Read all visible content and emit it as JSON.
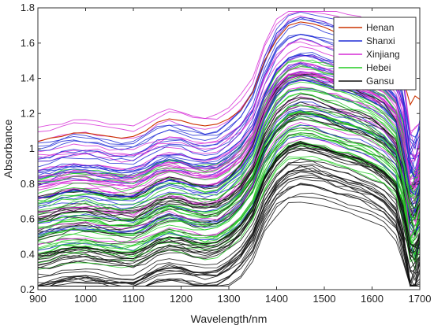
{
  "chart_data": {
    "type": "line",
    "title": "",
    "xlabel": "Wavelength/nm",
    "ylabel": "Absorbance",
    "xlim": [
      900,
      1700
    ],
    "ylim": [
      0.2,
      1.8
    ],
    "xticks": [
      "900",
      "1000",
      "1100",
      "1200",
      "1300",
      "1400",
      "1500",
      "1600",
      "1700"
    ],
    "yticks": [
      "0.2",
      "0.4",
      "0.6",
      "0.8",
      "1",
      "1.2",
      "1.4",
      "1.6",
      "1.8"
    ],
    "grid": false,
    "legend_position": "top-right",
    "x": [
      900,
      925,
      950,
      975,
      1000,
      1025,
      1050,
      1075,
      1100,
      1125,
      1150,
      1175,
      1200,
      1225,
      1250,
      1275,
      1300,
      1325,
      1350,
      1375,
      1400,
      1425,
      1450,
      1475,
      1500,
      1525,
      1550,
      1575,
      1600,
      1625,
      1650,
      1665,
      1680,
      1690,
      1700
    ],
    "series": [
      {
        "name": "Henan",
        "color": "#cc3300",
        "values": [
          1.04,
          1.06,
          1.07,
          1.09,
          1.09,
          1.08,
          1.07,
          1.06,
          1.07,
          1.1,
          1.15,
          1.17,
          1.16,
          1.14,
          1.13,
          1.14,
          1.17,
          1.22,
          1.32,
          1.5,
          1.62,
          1.7,
          1.72,
          1.71,
          1.69,
          1.66,
          1.64,
          1.62,
          1.58,
          1.55,
          1.5,
          1.4,
          1.25,
          1.3,
          1.28
        ]
      },
      {
        "name": "Shanxi",
        "color": "#1f2bd6",
        "values": [
          0.72,
          0.73,
          0.75,
          0.76,
          0.76,
          0.75,
          0.74,
          0.73,
          0.73,
          0.76,
          0.8,
          0.82,
          0.81,
          0.79,
          0.78,
          0.79,
          0.83,
          0.89,
          0.99,
          1.17,
          1.3,
          1.37,
          1.39,
          1.38,
          1.36,
          1.34,
          1.32,
          1.3,
          1.27,
          1.23,
          1.15,
          1.0,
          0.76,
          0.74,
          0.82
        ]
      },
      {
        "name": "Xinjiang",
        "color": "#d62bd6",
        "values": [
          0.78,
          0.79,
          0.81,
          0.82,
          0.82,
          0.81,
          0.8,
          0.79,
          0.79,
          0.82,
          0.86,
          0.88,
          0.87,
          0.85,
          0.84,
          0.85,
          0.89,
          0.95,
          1.05,
          1.23,
          1.35,
          1.42,
          1.44,
          1.43,
          1.41,
          1.39,
          1.37,
          1.35,
          1.32,
          1.28,
          1.2,
          1.05,
          0.8,
          0.78,
          0.86
        ]
      },
      {
        "name": "Hebei",
        "color": "#22cc22",
        "values": [
          0.58,
          0.59,
          0.61,
          0.62,
          0.62,
          0.61,
          0.6,
          0.59,
          0.59,
          0.62,
          0.66,
          0.68,
          0.67,
          0.65,
          0.64,
          0.65,
          0.69,
          0.75,
          0.85,
          1.02,
          1.13,
          1.19,
          1.21,
          1.2,
          1.18,
          1.16,
          1.14,
          1.12,
          1.09,
          1.05,
          0.98,
          0.84,
          0.62,
          0.6,
          0.68
        ]
      },
      {
        "name": "Gansu",
        "color": "#111111",
        "values": [
          0.4,
          0.41,
          0.43,
          0.44,
          0.44,
          0.43,
          0.42,
          0.41,
          0.41,
          0.44,
          0.48,
          0.5,
          0.49,
          0.47,
          0.46,
          0.47,
          0.51,
          0.57,
          0.67,
          0.84,
          0.95,
          1.01,
          1.03,
          1.02,
          1.0,
          0.98,
          0.96,
          0.94,
          0.91,
          0.87,
          0.8,
          0.66,
          0.46,
          0.44,
          0.52
        ]
      }
    ]
  }
}
